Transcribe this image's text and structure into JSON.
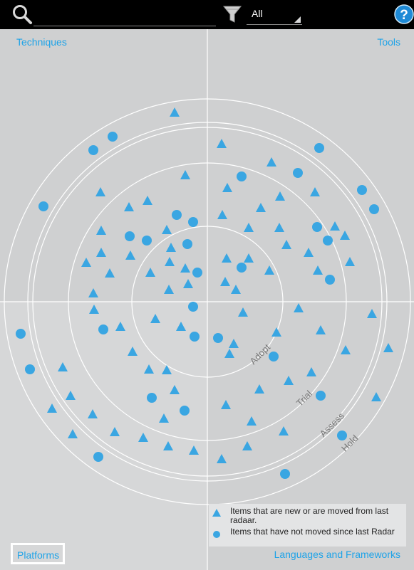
{
  "header": {
    "search": {
      "value": "",
      "placeholder": ""
    },
    "filter": {
      "selected": "All"
    },
    "icons": {
      "search": "search-icon",
      "filter": "funnel-icon",
      "help": "help-icon"
    }
  },
  "quadrants": {
    "top_left": "Techniques",
    "top_right": "Tools",
    "bottom_left": "Platforms",
    "bottom_right": "Languages and Frameworks"
  },
  "rings": [
    "Adopt",
    "Trial",
    "Assess",
    "Hold"
  ],
  "legend": {
    "new_or_moved": "Items that are new or are moved from last radaar.",
    "not_moved": "Items that have not moved since last Radar"
  },
  "colors": {
    "accent": "#1ea3e8",
    "blip": "#3aa6e2",
    "ring": "#ffffff",
    "background": "#cfd0d1"
  },
  "selected_quadrant": "Platforms"
}
